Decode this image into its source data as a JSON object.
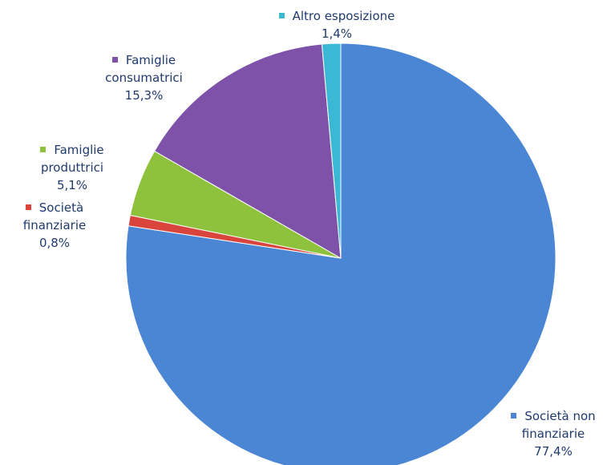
{
  "chart_data": {
    "type": "pie",
    "categories": [
      "Società non finanziarie",
      "Società finanziarie",
      "Famiglie produttrici",
      "Famiglie consumatrici",
      "Altro esposizione"
    ],
    "values": [
      77.4,
      0.8,
      5.1,
      15.3,
      1.4
    ],
    "value_labels": [
      "77,4%",
      "0,8%",
      "5,1%",
      "15,3%",
      "1,4%"
    ],
    "colors": [
      "#4a86d4",
      "#d9453c",
      "#8fc23c",
      "#7e52a8",
      "#3bb8d4"
    ]
  }
}
